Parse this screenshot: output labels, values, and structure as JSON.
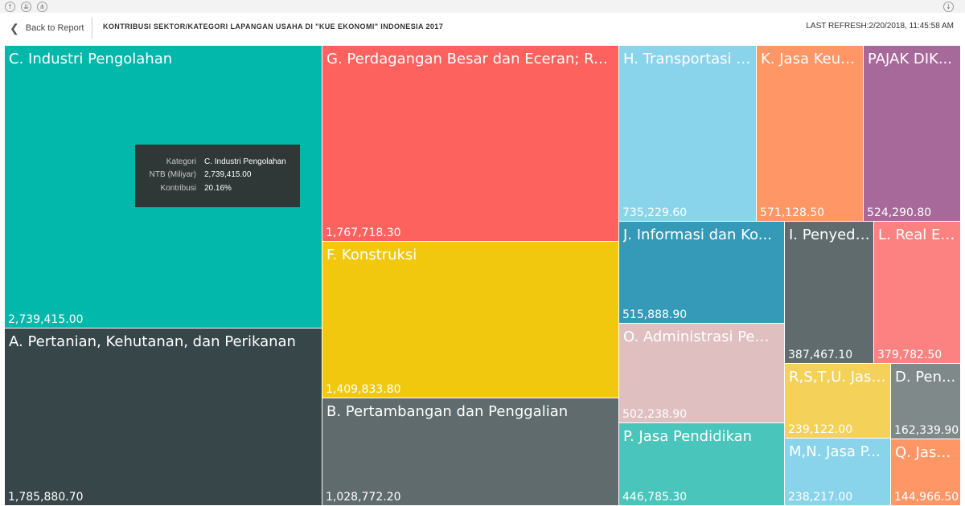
{
  "header": {
    "back_label": "Back to Report",
    "title": "KONTRIBUSI SEKTOR/KATEGORI LAPANGAN USAHA DI \"KUE EKONOMI\" INDONESIA 2017",
    "refresh": "LAST REFRESH:2/20/2018, 11:45:58 AM"
  },
  "topbar": {
    "icons": [
      "drill-up-icon",
      "drill-down-icon",
      "expand-all-icon",
      "drill-mode-icon"
    ]
  },
  "tooltip": {
    "rows": [
      {
        "key": "Kategori",
        "value": "C. Industri Pengolahan"
      },
      {
        "key": "NTB (Miliyar)",
        "value": "2,739,415.00"
      },
      {
        "key": "Kontribusi",
        "value": "20.16%"
      }
    ]
  },
  "tiles": [
    {
      "label": "C. Industri Pengolahan",
      "value": "2,739,415.00",
      "color": "#01b8aa"
    },
    {
      "label": "A. Pertanian, Kehutanan, dan Perikanan",
      "value": "1,785,880.70",
      "color": "#374649"
    },
    {
      "label": "G. Perdagangan Besar dan Eceran; Rep...",
      "value": "1,767,718.30",
      "color": "#fd625e"
    },
    {
      "label": "F. Konstruksi",
      "value": "1,409,833.80",
      "color": "#f2c80f"
    },
    {
      "label": "B. Pertambangan dan Penggalian",
      "value": "1,028,772.20",
      "color": "#5f6b6d"
    },
    {
      "label": "H. Transportasi d...",
      "value": "735,229.60",
      "color": "#8ad4eb"
    },
    {
      "label": "K. Jasa Keua...",
      "value": "571,128.50",
      "color": "#fe9666"
    },
    {
      "label": "PAJAK DIK...",
      "value": "524,290.80",
      "color": "#a66999"
    },
    {
      "label": "J. Informasi dan Ko...",
      "value": "515,888.90",
      "color": "#3599b8"
    },
    {
      "label": "O. Administrasi Pem...",
      "value": "502,238.90",
      "color": "#dfbfbf"
    },
    {
      "label": "P. Jasa Pendidikan",
      "value": "446,785.30",
      "color": "#4ac5bb"
    },
    {
      "label": "I. Penyedi...",
      "value": "387,467.10",
      "color": "#5f6b6d"
    },
    {
      "label": "L. Real Es...",
      "value": "379,782.50",
      "color": "#fb8281"
    },
    {
      "label": "R,S,T,U. Jasa...",
      "value": "239,122.00",
      "color": "#f4d25a"
    },
    {
      "label": "D. Pen...",
      "value": "162,339.90",
      "color": "#7f898a"
    },
    {
      "label": "M,N. Jasa P...",
      "value": "238,217.00",
      "color": "#8ad4eb"
    },
    {
      "label": "Q. Jasa...",
      "value": "144,966.50",
      "color": "#fe9666"
    }
  ]
}
